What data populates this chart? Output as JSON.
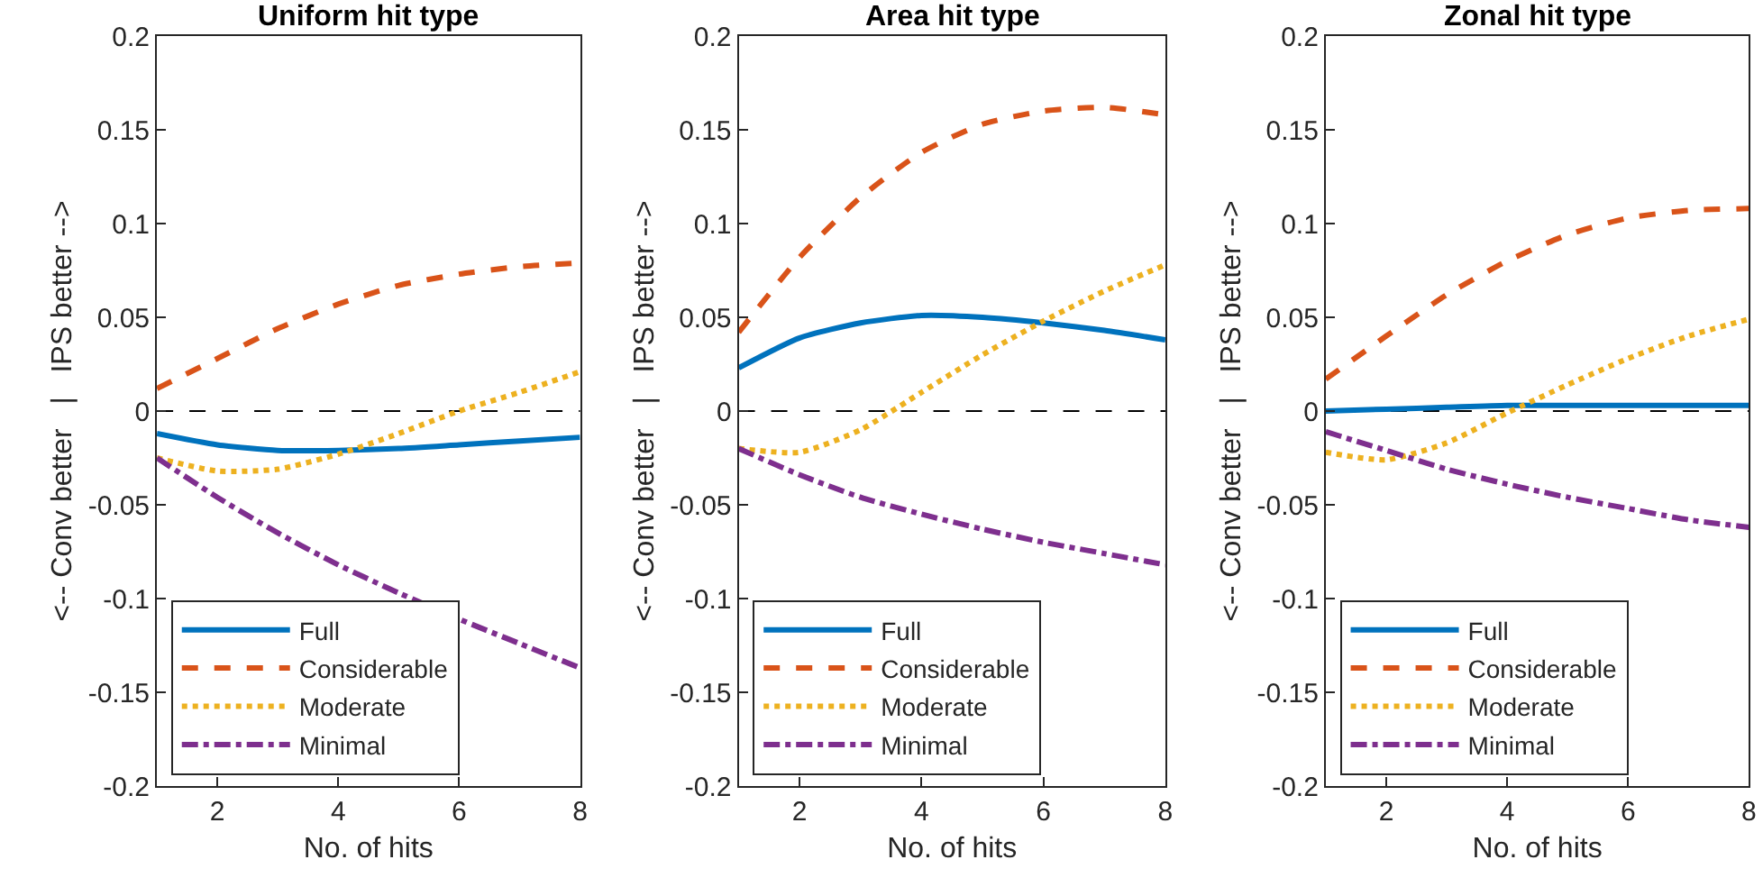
{
  "chart_data": [
    {
      "type": "line",
      "title": "Uniform hit type",
      "xlabel": "No. of hits",
      "ylabel": "<-- Conv better   |   IPS better -->",
      "x": [
        1,
        2,
        3,
        4,
        5,
        6,
        7,
        8
      ],
      "xlim": [
        1,
        8
      ],
      "xticks": [
        2,
        4,
        6,
        8
      ],
      "ylim": [
        -0.2,
        0.2
      ],
      "yticks": [
        -0.2,
        -0.15,
        -0.1,
        -0.05,
        0,
        0.05,
        0.1,
        0.15,
        0.2
      ],
      "grid": false,
      "legend": "bottom left",
      "ref_lines": [
        {
          "axis": "y",
          "value": 0,
          "color": "#000000",
          "line_style": "dashed"
        }
      ],
      "series": [
        {
          "name": "Full",
          "color": "#0072bd",
          "line_style": "solid",
          "values": [
            -0.012,
            -0.018,
            -0.021,
            -0.021,
            -0.02,
            -0.018,
            -0.016,
            -0.014
          ]
        },
        {
          "name": "Considerable",
          "color": "#d95319",
          "line_style": "dashed",
          "values": [
            0.012,
            0.028,
            0.044,
            0.057,
            0.067,
            0.073,
            0.077,
            0.079
          ]
        },
        {
          "name": "Moderate",
          "color": "#edb120",
          "line_style": "dotted",
          "values": [
            -0.025,
            -0.032,
            -0.031,
            -0.023,
            -0.012,
            0.0,
            0.01,
            0.021
          ]
        },
        {
          "name": "Minimal",
          "color": "#7e2f8e",
          "line_style": "dashdot",
          "values": [
            -0.025,
            -0.046,
            -0.065,
            -0.082,
            -0.097,
            -0.111,
            -0.124,
            -0.137
          ]
        }
      ]
    },
    {
      "type": "line",
      "title": "Area hit type",
      "xlabel": "No. of hits",
      "ylabel": "<-- Conv better   |   IPS better -->",
      "x": [
        1,
        2,
        3,
        4,
        5,
        6,
        7,
        8
      ],
      "xlim": [
        1,
        8
      ],
      "xticks": [
        2,
        4,
        6,
        8
      ],
      "ylim": [
        -0.2,
        0.2
      ],
      "yticks": [
        -0.2,
        -0.15,
        -0.1,
        -0.05,
        0,
        0.05,
        0.1,
        0.15,
        0.2
      ],
      "grid": false,
      "legend": "bottom left",
      "ref_lines": [
        {
          "axis": "y",
          "value": 0,
          "color": "#000000",
          "line_style": "dashed"
        }
      ],
      "series": [
        {
          "name": "Full",
          "color": "#0072bd",
          "line_style": "solid",
          "values": [
            0.023,
            0.039,
            0.047,
            0.051,
            0.05,
            0.047,
            0.043,
            0.038
          ]
        },
        {
          "name": "Considerable",
          "color": "#d95319",
          "line_style": "dashed",
          "values": [
            0.042,
            0.082,
            0.114,
            0.138,
            0.153,
            0.16,
            0.162,
            0.158
          ]
        },
        {
          "name": "Moderate",
          "color": "#edb120",
          "line_style": "dotted",
          "values": [
            -0.02,
            -0.022,
            -0.01,
            0.01,
            0.03,
            0.048,
            0.064,
            0.078
          ]
        },
        {
          "name": "Minimal",
          "color": "#7e2f8e",
          "line_style": "dashdot",
          "values": [
            -0.02,
            -0.034,
            -0.046,
            -0.055,
            -0.063,
            -0.07,
            -0.076,
            -0.082
          ]
        }
      ]
    },
    {
      "type": "line",
      "title": "Zonal hit type",
      "xlabel": "No. of hits",
      "ylabel": "<-- Conv better   |   IPS better -->",
      "x": [
        1,
        2,
        3,
        4,
        5,
        6,
        7,
        8
      ],
      "xlim": [
        1,
        8
      ],
      "xticks": [
        2,
        4,
        6,
        8
      ],
      "ylim": [
        -0.2,
        0.2
      ],
      "yticks": [
        -0.2,
        -0.15,
        -0.1,
        -0.05,
        0,
        0.05,
        0.1,
        0.15,
        0.2
      ],
      "grid": false,
      "legend": "bottom left",
      "ref_lines": [
        {
          "axis": "y",
          "value": 0,
          "color": "#000000",
          "line_style": "dashed"
        }
      ],
      "series": [
        {
          "name": "Full",
          "color": "#0072bd",
          "line_style": "solid",
          "values": [
            0.0,
            0.001,
            0.002,
            0.003,
            0.003,
            0.003,
            0.003,
            0.003
          ]
        },
        {
          "name": "Considerable",
          "color": "#d95319",
          "line_style": "dashed",
          "values": [
            0.017,
            0.04,
            0.062,
            0.08,
            0.094,
            0.103,
            0.107,
            0.108
          ]
        },
        {
          "name": "Moderate",
          "color": "#edb120",
          "line_style": "dotted",
          "values": [
            -0.022,
            -0.026,
            -0.017,
            -0.001,
            0.014,
            0.028,
            0.04,
            0.049
          ]
        },
        {
          "name": "Minimal",
          "color": "#7e2f8e",
          "line_style": "dashdot",
          "values": [
            -0.011,
            -0.021,
            -0.031,
            -0.039,
            -0.046,
            -0.052,
            -0.058,
            -0.062
          ]
        }
      ]
    }
  ]
}
